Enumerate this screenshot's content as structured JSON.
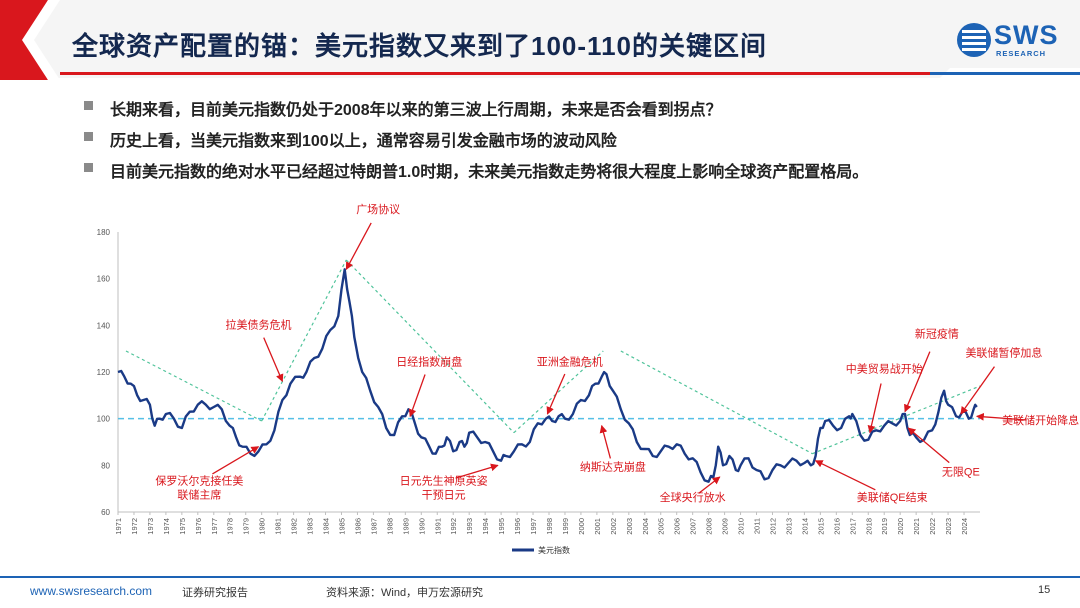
{
  "slide": {
    "title": "全球资产配置的锚：美元指数又来到了100-110的关键区间",
    "logo": {
      "text": "SWS",
      "subtext": "RESEARCH"
    },
    "bullets": [
      "长期来看，目前美元指数仍处于2008年以来的第三波上行周期，未来是否会看到拐点？",
      "历史上看，当美元指数来到100以上，通常容易引发金融市场的波动风险",
      "目前美元指数的绝对水平已经超过特朗普1.0时期，未来美元指数走势将很大程度上影响全球资产配置格局。"
    ],
    "footer": {
      "url": "www.swsresearch.com",
      "label": "证券研究报告",
      "source": "资料来源：Wind，申万宏源研究",
      "page": "15"
    }
  },
  "colors": {
    "title": "#14284f",
    "accent": "#1d63b5",
    "red": "#d9171d",
    "line": "#1a3a86",
    "trend": "#4fc39a",
    "ref": "#55c0e6"
  },
  "chart_data": {
    "type": "line",
    "series": [
      {
        "name": "美元指数",
        "color": "#1a3a86",
        "x": [
          1971.0,
          1971.4,
          1971.8,
          1972.2,
          1972.6,
          1973.0,
          1973.3,
          1973.6,
          1974.0,
          1974.5,
          1975.0,
          1975.5,
          1976.0,
          1976.5,
          1977.0,
          1977.5,
          1978.0,
          1978.4,
          1978.8,
          1979.3,
          1979.8,
          1980.3,
          1980.8,
          1981.3,
          1981.8,
          1982.4,
          1982.8,
          1983.3,
          1983.8,
          1984.3,
          1984.8,
          1985.2,
          1985.5,
          1985.8,
          1986.3,
          1986.8,
          1987.3,
          1987.8,
          1988.3,
          1988.8,
          1989.2,
          1989.6,
          1990.0,
          1990.5,
          1990.9,
          1991.3,
          1991.6,
          1992.0,
          1992.4,
          1992.7,
          1993.0,
          1993.5,
          1994.0,
          1994.5,
          1995.0,
          1995.3,
          1995.8,
          1996.3,
          1996.8,
          1997.3,
          1997.8,
          1998.2,
          1998.6,
          1999.0,
          1999.5,
          2000.0,
          2000.5,
          2000.9,
          2001.3,
          2001.6,
          2002.0,
          2002.5,
          2003.0,
          2003.5,
          2004.0,
          2004.5,
          2005.0,
          2005.5,
          2006.0,
          2006.5,
          2007.0,
          2007.5,
          2008.0,
          2008.3,
          2008.6,
          2008.9,
          2009.3,
          2009.7,
          2010.0,
          2010.5,
          2011.0,
          2011.5,
          2012.0,
          2012.5,
          2013.0,
          2013.5,
          2014.0,
          2014.4,
          2014.7,
          2015.0,
          2015.3,
          2015.8,
          2016.3,
          2016.8,
          2017.0,
          2017.5,
          2018.0,
          2018.5,
          2019.0,
          2019.5,
          2020.0,
          2020.3,
          2020.6,
          2021.0,
          2021.5,
          2022.0,
          2022.4,
          2022.75,
          2023.0,
          2023.5,
          2023.9,
          2024.3,
          2024.6,
          2024.8
        ],
        "values": [
          120,
          118,
          115,
          110,
          108,
          106,
          97,
          100,
          102,
          100,
          96,
          103,
          106,
          106,
          105,
          104,
          97,
          92,
          88,
          85,
          86,
          89,
          95,
          108,
          115,
          118,
          120,
          126,
          130,
          138,
          144,
          164,
          150,
          135,
          120,
          112,
          105,
          96,
          93,
          101,
          104,
          98,
          92,
          88,
          85,
          88,
          92,
          86,
          90,
          88,
          94,
          92,
          90,
          86,
          82,
          84,
          86,
          89,
          90,
          98,
          100,
          99,
          101,
          100,
          102,
          108,
          110,
          115,
          118,
          119,
          112,
          104,
          98,
          90,
          87,
          84,
          86,
          88,
          89,
          85,
          83,
          77,
          73,
          75,
          88,
          80,
          84,
          78,
          80,
          83,
          78,
          74,
          78,
          80,
          81,
          82,
          81,
          80,
          84,
          96,
          99,
          97,
          96,
          101,
          102,
          93,
          91,
          95,
          97,
          98,
          99,
          102,
          93,
          92,
          91,
          95,
          103,
          112,
          106,
          101,
          103,
          100,
          104,
          105
        ]
      }
    ],
    "xlim": [
      1971,
      2025
    ],
    "ylim": [
      60,
      180
    ],
    "yticks": [
      60,
      80,
      100,
      120,
      140,
      160,
      180
    ],
    "xticks": [
      "1971",
      "1972",
      "1973",
      "1974",
      "1975",
      "1976",
      "1977",
      "1978",
      "1979",
      "1980",
      "1981",
      "1982",
      "1983",
      "1984",
      "1985",
      "1986",
      "1987",
      "1988",
      "1989",
      "1990",
      "1991",
      "1992",
      "1993",
      "1994",
      "1995",
      "1996",
      "1997",
      "1998",
      "1999",
      "2000",
      "2001",
      "2002",
      "2003",
      "2004",
      "2005",
      "2006",
      "2007",
      "2008",
      "2009",
      "2010",
      "2011",
      "2012",
      "2013",
      "2014",
      "2015",
      "2016",
      "2017",
      "2018",
      "2019",
      "2020",
      "2021",
      "2022",
      "2023",
      "2024"
    ],
    "reference_line": 100,
    "trend_lines": [
      [
        [
          1971.5,
          129
        ],
        [
          1980,
          99
        ]
      ],
      [
        [
          1980,
          99
        ],
        [
          1985.3,
          168
        ]
      ],
      [
        [
          1985.3,
          168
        ],
        [
          1995.8,
          94
        ]
      ],
      [
        [
          1995.8,
          94
        ],
        [
          2001.4,
          129
        ]
      ],
      [
        [
          2002.5,
          129
        ],
        [
          2014.5,
          85
        ]
      ],
      [
        [
          2014.5,
          85
        ],
        [
          2025,
          114
        ]
      ]
    ],
    "annotations": [
      {
        "text": "广场协议",
        "tip": [
          1985.3,
          164
        ],
        "label": [
          1987.3,
          189.5
        ]
      },
      {
        "text": "拉美债务危机",
        "tip": [
          1981.3,
          116
        ],
        "label": [
          1979.8,
          140
        ]
      },
      {
        "text": "日经指数崩盘",
        "tip": [
          1989.3,
          101
        ],
        "label": [
          1990.5,
          124
        ]
      },
      {
        "text": "亚洲金融危机",
        "tip": [
          1997.9,
          102
        ],
        "label": [
          1999.3,
          124
        ]
      },
      {
        "text": "保罗沃尔克接任美",
        "text2": "联储主席",
        "tip": [
          1979.8,
          88
        ],
        "label": [
          1976.1,
          73
        ]
      },
      {
        "text": "日元先生神原英姿",
        "text2": "干预日元",
        "tip": [
          1994.8,
          80
        ],
        "label": [
          1991.4,
          73
        ]
      },
      {
        "text": "纳斯达克崩盘",
        "tip": [
          2001.3,
          97
        ],
        "label": [
          2002.0,
          79
        ]
      },
      {
        "text": "全球央行放水",
        "tip": [
          2008.7,
          75
        ],
        "label": [
          2007.0,
          66
        ]
      },
      {
        "text": "中美贸易战开始",
        "tip": [
          2018.1,
          94
        ],
        "label": [
          2019.0,
          121
        ]
      },
      {
        "text": "新冠疫情",
        "tip": [
          2020.3,
          103
        ],
        "label": [
          2022.3,
          136
        ]
      },
      {
        "text": "美联储暂停加息",
        "tip": [
          2023.8,
          102
        ],
        "label": [
          2026.5,
          128
        ]
      },
      {
        "text": "美联储QE结束",
        "tip": [
          2014.7,
          82
        ],
        "label": [
          2019.5,
          66
        ]
      },
      {
        "text": "无限QE",
        "tip": [
          2020.5,
          96
        ],
        "label": [
          2023.8,
          77
        ]
      },
      {
        "text": "美联储开始降息",
        "tip": [
          2024.8,
          101
        ],
        "label": [
          2028.8,
          99
        ]
      }
    ]
  }
}
